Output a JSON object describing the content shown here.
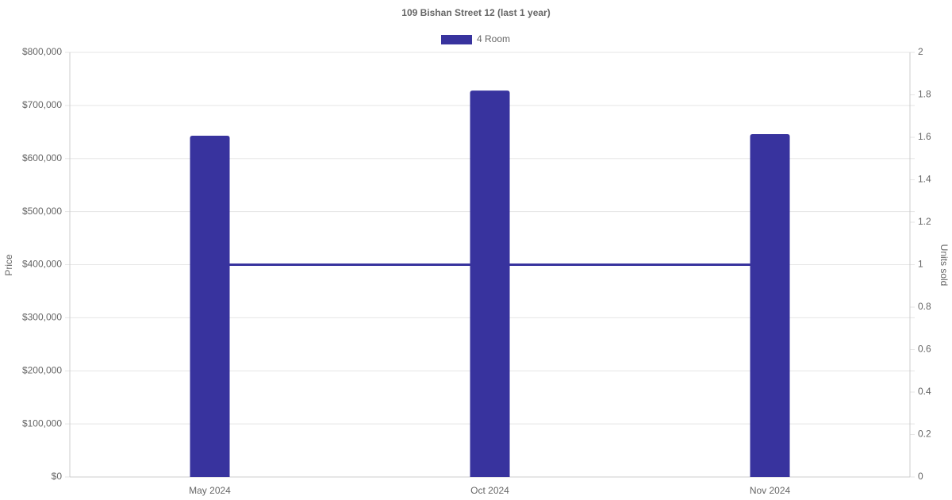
{
  "chart_data": {
    "type": "bar",
    "title": "109 Bishan Street 12 (last 1 year)",
    "y_label": "Price",
    "y2_label": "Units sold",
    "categories": [
      "May 2024",
      "Oct 2024",
      "Nov 2024"
    ],
    "series": [
      {
        "name": "4 Room",
        "color": "#38339e",
        "values": [
          643000,
          728000,
          646000
        ]
      },
      {
        "type": "line",
        "axis": "y2",
        "color": "#38339e",
        "values": [
          1,
          1,
          1
        ]
      }
    ],
    "ylim": [
      0,
      800000
    ],
    "yticks": [
      {
        "value": 0,
        "label": "$0"
      },
      {
        "value": 100000,
        "label": "$100,000"
      },
      {
        "value": 200000,
        "label": "$200,000"
      },
      {
        "value": 300000,
        "label": "$300,000"
      },
      {
        "value": 400000,
        "label": "$400,000"
      },
      {
        "value": 500000,
        "label": "$500,000"
      },
      {
        "value": 600000,
        "label": "$600,000"
      },
      {
        "value": 700000,
        "label": "$700,000"
      },
      {
        "value": 800000,
        "label": "$800,000"
      }
    ],
    "y2lim": [
      0,
      2
    ],
    "y2ticks": [
      0,
      0.2,
      0.4,
      0.6,
      0.8,
      1,
      1.2,
      1.4,
      1.6,
      1.8,
      2
    ],
    "grid": true,
    "legend": "top"
  }
}
